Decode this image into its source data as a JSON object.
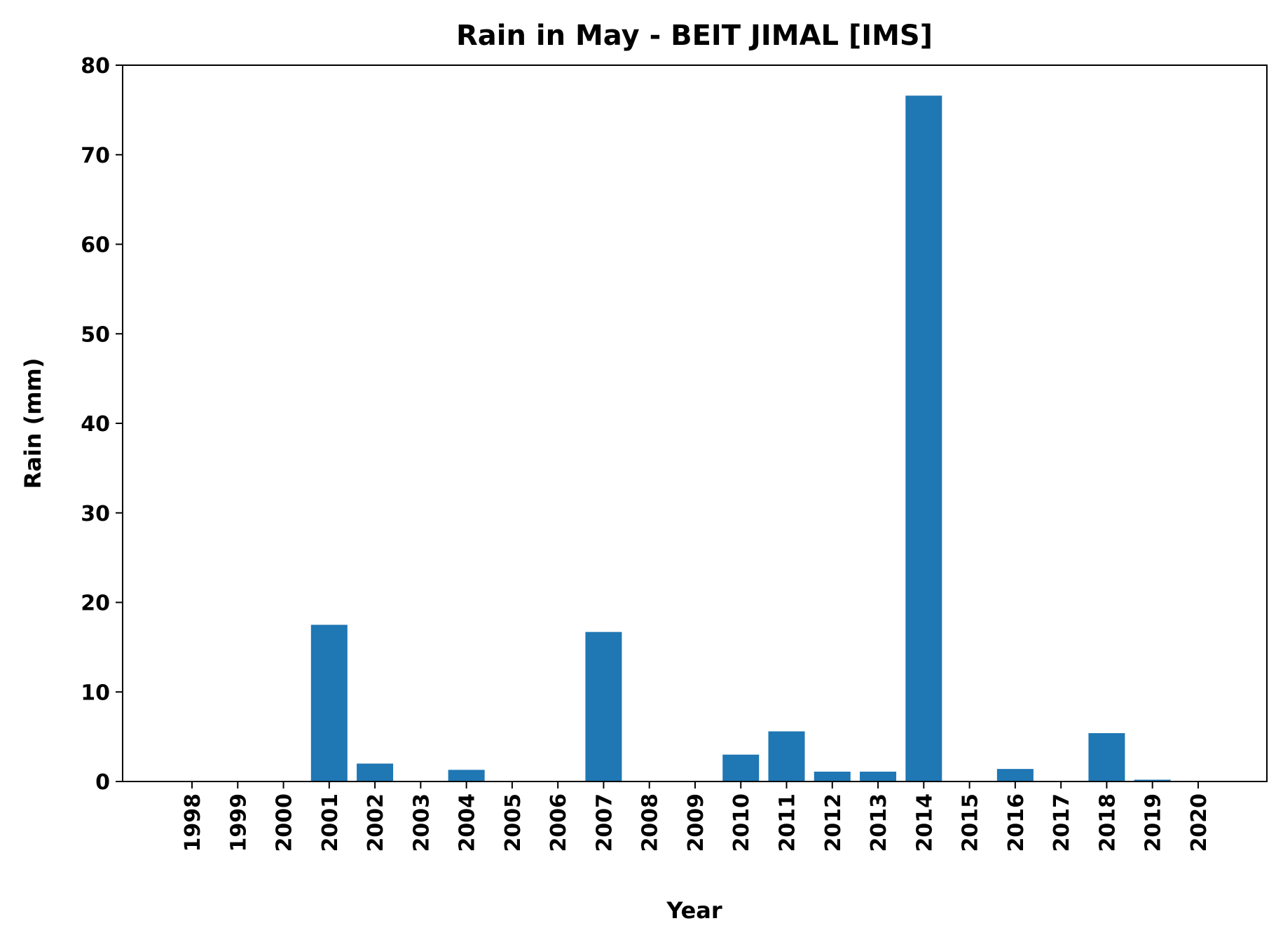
{
  "chart_data": {
    "type": "bar",
    "title": "Rain in May - BEIT JIMAL [IMS]",
    "xlabel": "Year",
    "ylabel": "Rain (mm)",
    "ylim": [
      0,
      80
    ],
    "yticks": [
      0,
      10,
      20,
      30,
      40,
      50,
      60,
      70,
      80
    ],
    "categories": [
      "1998",
      "1999",
      "2000",
      "2001",
      "2002",
      "2003",
      "2004",
      "2005",
      "2006",
      "2007",
      "2008",
      "2009",
      "2010",
      "2011",
      "2012",
      "2013",
      "2014",
      "2015",
      "2016",
      "2017",
      "2018",
      "2019",
      "2020"
    ],
    "values": [
      0,
      0,
      0,
      17.5,
      2.0,
      0,
      1.3,
      0,
      0,
      16.7,
      0,
      0,
      3.0,
      5.6,
      1.1,
      1.1,
      76.6,
      0,
      1.4,
      0,
      5.4,
      0.2,
      0
    ],
    "bar_color": "#1f77b4",
    "grid": false,
    "legend": false
  }
}
